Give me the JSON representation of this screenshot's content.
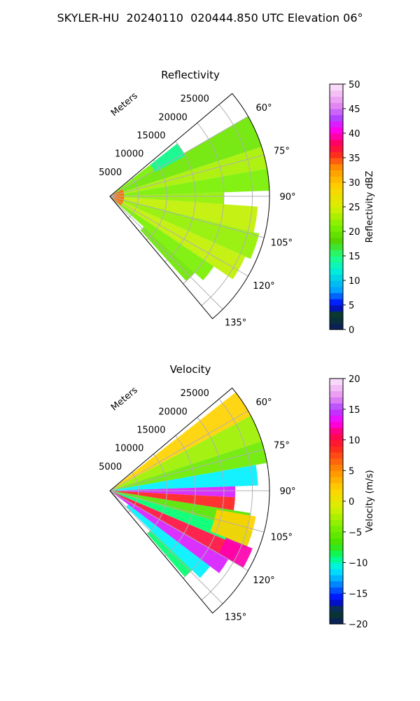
{
  "figure": {
    "title": "SKYLER-HU  20240110  020444.850 UTC Elevation 06°"
  },
  "chart_data": [
    {
      "type": "heatmap",
      "title": "Reflectivity",
      "projection": "polar sector",
      "azimuth_range_deg": [
        50,
        140
      ],
      "azimuth_ticks_deg": [
        60,
        75,
        90,
        105,
        120,
        135
      ],
      "azimuth_tick_labels": [
        "60°",
        "75°",
        "90°",
        "105°",
        "120°",
        "135°"
      ],
      "range_ticks_m": [
        5000,
        10000,
        15000,
        20000,
        25000
      ],
      "range_tick_labels": [
        "5000",
        "10000",
        "15000",
        "20000",
        "25000"
      ],
      "range_max_m": 28000,
      "range_label": "Meters",
      "grid": true,
      "colorbar": {
        "label": "Reflectivity dBZ",
        "min": 0,
        "max": 50,
        "ticks": [
          0,
          5,
          10,
          15,
          20,
          25,
          30,
          35,
          40,
          45,
          50
        ],
        "tick_labels": [
          "0",
          "5",
          "10",
          "15",
          "20",
          "25",
          "30",
          "35",
          "40",
          "45",
          "50"
        ]
      },
      "bands": [
        {
          "az": [
            52,
            60
          ],
          "r": [
            0,
            15000
          ],
          "value": 21
        },
        {
          "az": [
            60,
            72
          ],
          "r": [
            0,
            28000
          ],
          "value": 20
        },
        {
          "az": [
            72,
            80
          ],
          "r": [
            0,
            28000
          ],
          "value": 23
        },
        {
          "az": [
            80,
            88
          ],
          "r": [
            0,
            28000
          ],
          "value": 21
        },
        {
          "az": [
            88,
            94
          ],
          "r": [
            0,
            20000
          ],
          "value": 22
        },
        {
          "az": [
            94,
            104
          ],
          "r": [
            0,
            26000
          ],
          "value": 24
        },
        {
          "az": [
            104,
            114
          ],
          "r": [
            0,
            27000
          ],
          "value": 22
        },
        {
          "az": [
            114,
            124
          ],
          "r": [
            0,
            26000
          ],
          "value": 24
        },
        {
          "az": [
            124,
            132
          ],
          "r": [
            0,
            22000
          ],
          "value": 21
        },
        {
          "az": [
            132,
            138
          ],
          "r": [
            8000,
            20000
          ],
          "value": 20
        },
        {
          "az": [
            52,
            62
          ],
          "r": [
            9000,
            15000
          ],
          "value": 14
        },
        {
          "az": [
            60,
            130
          ],
          "r": [
            0,
            2500
          ],
          "value": 34
        }
      ]
    },
    {
      "type": "heatmap",
      "title": "Velocity",
      "projection": "polar sector",
      "azimuth_range_deg": [
        50,
        140
      ],
      "azimuth_ticks_deg": [
        60,
        75,
        90,
        105,
        120,
        135
      ],
      "azimuth_tick_labels": [
        "60°",
        "75°",
        "90°",
        "105°",
        "120°",
        "135°"
      ],
      "range_ticks_m": [
        5000,
        10000,
        15000,
        20000,
        25000
      ],
      "range_tick_labels": [
        "5000",
        "10000",
        "15000",
        "20000",
        "25000"
      ],
      "range_max_m": 28000,
      "range_label": "Meters",
      "grid": true,
      "colorbar": {
        "label": "Velocity (m/s)",
        "min": -20,
        "max": 20,
        "ticks": [
          -20,
          -15,
          -10,
          -5,
          0,
          5,
          10,
          15,
          20
        ],
        "tick_labels": [
          "−20",
          "−15",
          "−10",
          "−5",
          "0",
          "5",
          "10",
          "15",
          "20"
        ]
      },
      "bands": [
        {
          "az": [
            52,
            62
          ],
          "r": [
            0,
            28000
          ],
          "value": 2
        },
        {
          "az": [
            62,
            72
          ],
          "r": [
            0,
            28000
          ],
          "value": -3
        },
        {
          "az": [
            72,
            80
          ],
          "r": [
            0,
            28000
          ],
          "value": -5
        },
        {
          "az": [
            80,
            88
          ],
          "r": [
            0,
            26000
          ],
          "value": -11
        },
        {
          "az": [
            88,
            93
          ],
          "r": [
            0,
            22000
          ],
          "value": 14
        },
        {
          "az": [
            93,
            99
          ],
          "r": [
            0,
            22000
          ],
          "value": 9
        },
        {
          "az": [
            99,
            106
          ],
          "r": [
            0,
            25000
          ],
          "value": -6
        },
        {
          "az": [
            106,
            113
          ],
          "r": [
            0,
            26000
          ],
          "value": -9
        },
        {
          "az": [
            113,
            120
          ],
          "r": [
            0,
            25000
          ],
          "value": 10
        },
        {
          "az": [
            120,
            127
          ],
          "r": [
            0,
            24000
          ],
          "value": 14
        },
        {
          "az": [
            127,
            134
          ],
          "r": [
            4000,
            22000
          ],
          "value": -11
        },
        {
          "az": [
            134,
            139
          ],
          "r": [
            10000,
            20000
          ],
          "value": -9
        },
        {
          "az": [
            100,
            112
          ],
          "r": [
            19000,
            26000
          ],
          "value": 2
        },
        {
          "az": [
            112,
            120
          ],
          "r": [
            22000,
            27000
          ],
          "value": 12
        }
      ]
    }
  ],
  "colormaps": {
    "reflectivity": [
      {
        "v": 0,
        "c": "#0b1a66"
      },
      {
        "v": 3,
        "c": "#0a3d22"
      },
      {
        "v": 5,
        "c": "#0000ff"
      },
      {
        "v": 8,
        "c": "#00a0ff"
      },
      {
        "v": 12,
        "c": "#00f0d8"
      },
      {
        "v": 15,
        "c": "#20ff80"
      },
      {
        "v": 18,
        "c": "#52d400"
      },
      {
        "v": 21,
        "c": "#7af000"
      },
      {
        "v": 25,
        "c": "#d8f000"
      },
      {
        "v": 29,
        "c": "#ffd200"
      },
      {
        "v": 33,
        "c": "#ff9000"
      },
      {
        "v": 36,
        "c": "#ff2020"
      },
      {
        "v": 38,
        "c": "#ff0060"
      },
      {
        "v": 41,
        "c": "#ff00ff"
      },
      {
        "v": 43,
        "c": "#b040ff"
      },
      {
        "v": 46,
        "c": "#e890f0"
      },
      {
        "v": 50,
        "c": "#fce8fc"
      }
    ],
    "velocity": [
      {
        "v": -20,
        "c": "#0b1a66"
      },
      {
        "v": -18,
        "c": "#0a3d22"
      },
      {
        "v": -16,
        "c": "#0000ff"
      },
      {
        "v": -13,
        "c": "#00a0ff"
      },
      {
        "v": -11,
        "c": "#00f0ff"
      },
      {
        "v": -9,
        "c": "#00ff70"
      },
      {
        "v": -7,
        "c": "#40e000"
      },
      {
        "v": -4,
        "c": "#80f000"
      },
      {
        "v": -1,
        "c": "#d8f000"
      },
      {
        "v": 2,
        "c": "#ffd200"
      },
      {
        "v": 5,
        "c": "#ff9000"
      },
      {
        "v": 9,
        "c": "#ff2020"
      },
      {
        "v": 11,
        "c": "#ff0060"
      },
      {
        "v": 13,
        "c": "#ff00ff"
      },
      {
        "v": 15,
        "c": "#b040ff"
      },
      {
        "v": 17,
        "c": "#e890f0"
      },
      {
        "v": 20,
        "c": "#fce8fc"
      }
    ]
  }
}
